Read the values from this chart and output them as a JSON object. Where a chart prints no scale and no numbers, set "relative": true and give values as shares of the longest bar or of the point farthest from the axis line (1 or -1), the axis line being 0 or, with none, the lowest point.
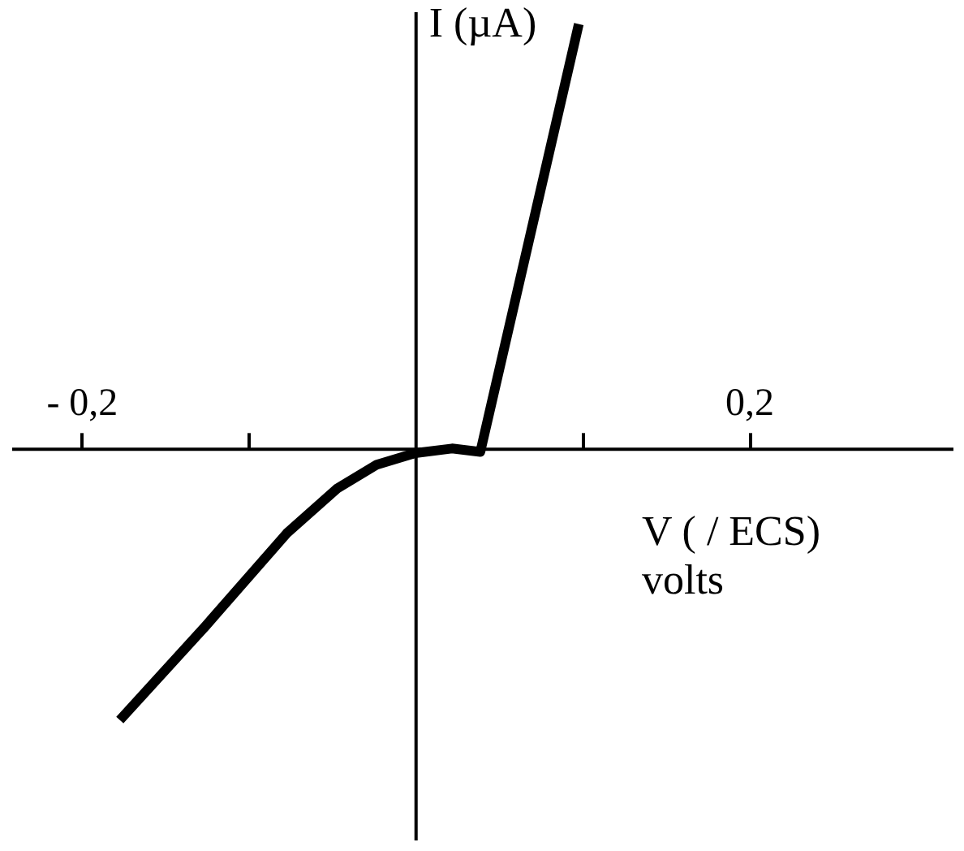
{
  "chart_data": {
    "type": "line",
    "relative": true,
    "xlabel": "V ( / ECS)\nvolts",
    "ylabel": "I (µA)",
    "xlim": [
      -0.242,
      0.322
    ],
    "xticks": [
      {
        "value": -0.2,
        "label": "- 0,2"
      },
      {
        "value": -0.1,
        "label": null
      },
      {
        "value": 0.1,
        "label": null
      },
      {
        "value": 0.2,
        "label": "0,2"
      }
    ],
    "x": [
      -0.177,
      -0.126,
      -0.077,
      -0.047,
      -0.023,
      0,
      0.022,
      0.039,
      0.098
    ],
    "series": [
      {
        "color": "#000000",
        "values": [
          -0.64,
          -0.42,
          -0.2,
          -0.095,
          -0.038,
          -0.011,
          0,
          -0.008,
          1.0
        ]
      }
    ],
    "grid": false,
    "marker": "none",
    "line_style": "solid"
  }
}
